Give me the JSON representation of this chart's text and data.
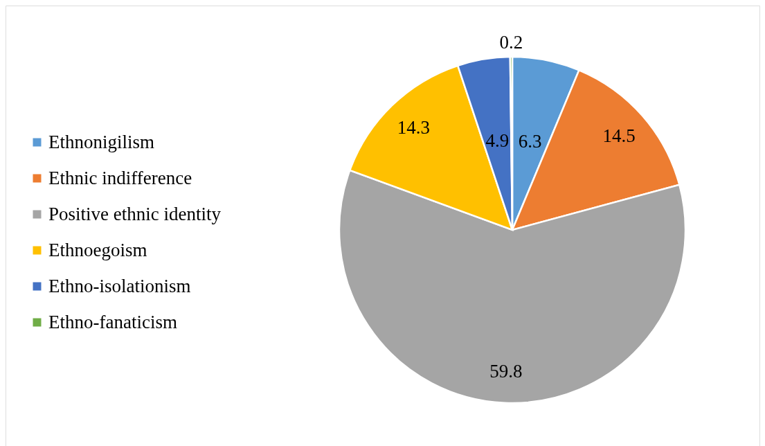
{
  "chart_data": {
    "type": "pie",
    "categories": [
      "Ethnonigilism",
      "Ethnic indifference",
      "Positive ethnic identity",
      "Ethnoegoism",
      "Ethno-isolationism",
      "Ethno-fanaticism"
    ],
    "values": [
      6.3,
      14.5,
      59.8,
      14.3,
      4.9,
      0.2
    ],
    "colors": [
      "#5b9bd5",
      "#ed7d31",
      "#a5a5a5",
      "#ffc000",
      "#4472c4",
      "#70ad47"
    ],
    "data_labels": true,
    "legend": "left"
  }
}
